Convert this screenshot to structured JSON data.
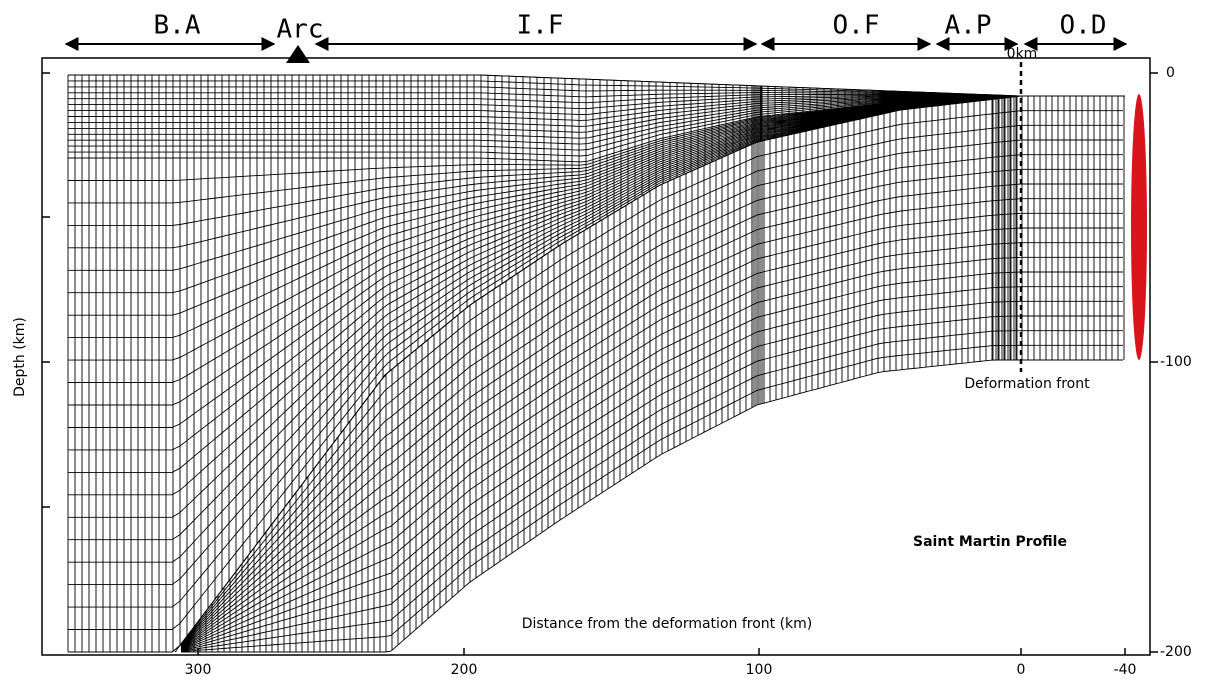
{
  "header": {
    "segments": [
      "B.A",
      "Arc",
      "I.F",
      "O.F",
      "A.P",
      "O.D"
    ]
  },
  "labels": {
    "zero": "0km",
    "front": "Deformation front",
    "profile": "Saint Martin Profile",
    "x_axis": "Distance from the deformation front (km)",
    "y_axis": "Depth (km)"
  },
  "x_ticks": [
    "300",
    "200",
    "100",
    "0",
    "-40"
  ],
  "y_ticks": [
    "0",
    "-100",
    "-200"
  ]
}
